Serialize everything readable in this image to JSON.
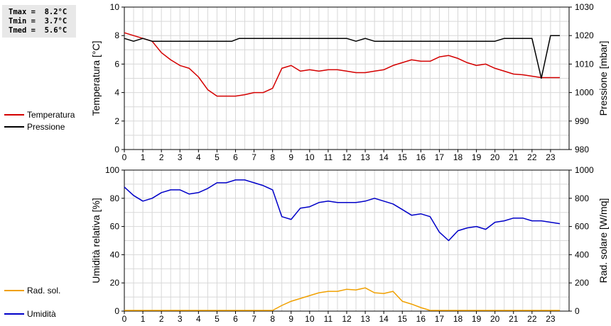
{
  "stats": {
    "tmax": "Tmax =  8.2°C",
    "tmin": "Tmin =  3.7°C",
    "tmed": "Tmed =  5.6°C"
  },
  "legend_top": [
    {
      "label": "Temperatura",
      "color": "#d40000"
    },
    {
      "label": "Pressione",
      "color": "#000000"
    }
  ],
  "legend_bottom": [
    {
      "label": "Umidità",
      "color": "#0000c8"
    },
    {
      "label": "Rad. sol.",
      "color": "#f0a000"
    }
  ],
  "chart_data": [
    {
      "type": "line",
      "xlim": [
        0,
        24
      ],
      "xticks": [
        "0",
        "1",
        "2",
        "3",
        "4",
        "5",
        "6",
        "7",
        "8",
        "9",
        "10",
        "11",
        "12",
        "13",
        "14",
        "15",
        "16",
        "17",
        "18",
        "19",
        "20",
        "21",
        "22",
        "23"
      ],
      "grid": true,
      "y_left": {
        "label": "Temperatura [°C]",
        "lim": [
          0,
          10
        ],
        "ticks": [
          "0",
          "2",
          "4",
          "6",
          "8",
          "10"
        ]
      },
      "y_right": {
        "label": "Pressione [mbar]",
        "lim": [
          980,
          1030
        ],
        "ticks": [
          "980",
          "990",
          "1000",
          "1010",
          "1020",
          "1030"
        ]
      },
      "series": [
        {
          "name": "Temperatura",
          "axis": "left",
          "color": "#d40000",
          "x": [
            0,
            0.5,
            1,
            1.5,
            2,
            2.5,
            3,
            3.5,
            4,
            4.5,
            5,
            5.5,
            6,
            6.5,
            7,
            7.5,
            8,
            8.5,
            9,
            9.5,
            10,
            10.5,
            11,
            11.5,
            12,
            12.5,
            13,
            13.5,
            14,
            14.5,
            15,
            15.5,
            16,
            16.5,
            17,
            17.5,
            18,
            18.5,
            19,
            19.5,
            20,
            20.5,
            21,
            21.5,
            22,
            22.5,
            23,
            23.5
          ],
          "y": [
            8.2,
            8.0,
            7.8,
            7.6,
            6.8,
            6.3,
            5.9,
            5.7,
            5.1,
            4.2,
            3.75,
            3.75,
            3.75,
            3.85,
            4.0,
            4.0,
            4.3,
            5.7,
            5.9,
            5.5,
            5.6,
            5.5,
            5.6,
            5.6,
            5.5,
            5.4,
            5.4,
            5.5,
            5.6,
            5.9,
            6.1,
            6.3,
            6.2,
            6.2,
            6.5,
            6.6,
            6.4,
            6.1,
            5.9,
            6.0,
            5.7,
            5.5,
            5.3,
            5.25,
            5.15,
            5.05,
            5.05,
            5.05
          ]
        },
        {
          "name": "Pressione",
          "axis": "right",
          "color": "#000000",
          "x": [
            0,
            0.5,
            1,
            1.5,
            2,
            3,
            4,
            5,
            5.8,
            6.2,
            7,
            8,
            9,
            10,
            11,
            12,
            12.5,
            13,
            13.5,
            14,
            15,
            16,
            17,
            18,
            19,
            20,
            20.5,
            21,
            21.5,
            22,
            22.5,
            23,
            23.5
          ],
          "y": [
            1019,
            1018,
            1019,
            1018,
            1018,
            1018,
            1018,
            1018,
            1018,
            1019,
            1019,
            1019,
            1019,
            1019,
            1019,
            1019,
            1018,
            1019,
            1018,
            1018,
            1018,
            1018,
            1018,
            1018,
            1018,
            1018,
            1019,
            1019,
            1019,
            1019,
            1005,
            1020,
            1020
          ]
        }
      ]
    },
    {
      "type": "line",
      "xlim": [
        0,
        24
      ],
      "xticks": [
        "0",
        "1",
        "2",
        "3",
        "4",
        "5",
        "6",
        "7",
        "8",
        "9",
        "10",
        "11",
        "12",
        "13",
        "14",
        "15",
        "16",
        "17",
        "18",
        "19",
        "20",
        "21",
        "22",
        "23"
      ],
      "grid": true,
      "y_left": {
        "label": "Umidità relativa [%]",
        "lim": [
          0,
          100
        ],
        "ticks": [
          "0",
          "20",
          "40",
          "60",
          "80",
          "100"
        ]
      },
      "y_right": {
        "label": "Rad. solare [W/mq]",
        "lim": [
          0,
          1000
        ],
        "ticks": [
          "0",
          "200",
          "400",
          "600",
          "800",
          "1000"
        ]
      },
      "series": [
        {
          "name": "Umidità",
          "axis": "left",
          "color": "#0000c8",
          "x": [
            0,
            0.5,
            1,
            1.5,
            2,
            2.5,
            3,
            3.5,
            4,
            4.5,
            5,
            5.5,
            6,
            6.5,
            7,
            7.5,
            8,
            8.5,
            9,
            9.5,
            10,
            10.5,
            11,
            11.5,
            12,
            12.5,
            13,
            13.5,
            14,
            14.5,
            15,
            15.5,
            16,
            16.5,
            17,
            17.5,
            18,
            18.5,
            19,
            19.5,
            20,
            20.5,
            21,
            21.5,
            22,
            22.5,
            23,
            23.5
          ],
          "y": [
            88,
            82,
            78,
            80,
            84,
            86,
            86,
            83,
            84,
            87,
            91,
            91,
            93,
            93,
            91,
            89,
            86,
            67,
            65,
            73,
            74,
            77,
            78,
            77,
            77,
            77,
            78,
            80,
            78,
            76,
            72,
            68,
            69,
            67,
            56,
            50,
            57,
            59,
            60,
            58,
            63,
            64,
            66,
            66,
            64,
            64,
            63,
            62
          ]
        },
        {
          "name": "Rad. sol.",
          "axis": "right",
          "color": "#f0a000",
          "x": [
            0,
            1,
            2,
            3,
            4,
            5,
            6,
            7,
            8,
            8.5,
            9,
            9.5,
            10,
            10.5,
            11,
            11.5,
            12,
            12.5,
            13,
            13.5,
            14,
            14.5,
            15,
            15.5,
            16,
            16.5,
            17,
            18,
            19,
            20,
            21,
            22,
            23,
            23.5
          ],
          "y": [
            5,
            5,
            5,
            5,
            5,
            5,
            5,
            5,
            5,
            40,
            70,
            90,
            110,
            130,
            140,
            140,
            155,
            150,
            165,
            130,
            125,
            140,
            70,
            50,
            25,
            5,
            5,
            5,
            5,
            5,
            5,
            5,
            5,
            5
          ]
        }
      ]
    }
  ]
}
